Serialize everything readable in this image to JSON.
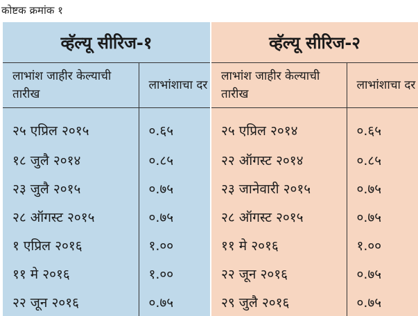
{
  "caption": "कोष्टक क्रमांक १",
  "series": [
    {
      "title": "व्हॅल्यू सीरिज-१",
      "headers": [
        "लाभांश जाहीर केल्याची तारीख",
        "लाभांशाचा दर"
      ],
      "rows": [
        {
          "date": "२५ एप्रिल २०१५",
          "rate": "०.६५"
        },
        {
          "date": "१८ जुलै २०१४",
          "rate": "०.८५"
        },
        {
          "date": "२३ जुलै २०१५",
          "rate": "०.७५"
        },
        {
          "date": "२८ ऑगस्ट २०१५",
          "rate": "०.७५"
        },
        {
          "date": "१ एप्रिल २०१६",
          "rate": "१.००"
        },
        {
          "date": "११ मे २०१६",
          "rate": "१.००"
        },
        {
          "date": "२२ जून २०१६",
          "rate": "०.७५"
        }
      ]
    },
    {
      "title": "व्हॅल्यू सीरिज-२",
      "headers": [
        "लाभांश जाहीर केल्याची तारीख",
        "लाभांशाचा दर"
      ],
      "rows": [
        {
          "date": "२५ एप्रिल २०१४",
          "rate": "०.६५"
        },
        {
          "date": "२२ ऑगस्ट २०१४",
          "rate": "०.८५"
        },
        {
          "date": "२३ जानेवारी २०१५",
          "rate": "०.७५"
        },
        {
          "date": "२८ ऑगस्ट २०१५",
          "rate": "०.७५"
        },
        {
          "date": "११ मे २०१६",
          "rate": "१.००"
        },
        {
          "date": "२२ जून २०१६",
          "rate": "०.७५"
        },
        {
          "date": "२९ जुलै २०१६",
          "rate": "०.७५"
        }
      ]
    }
  ],
  "colors": {
    "series1_bg": "#bfd9ea",
    "series2_bg": "#f7d6c1"
  }
}
